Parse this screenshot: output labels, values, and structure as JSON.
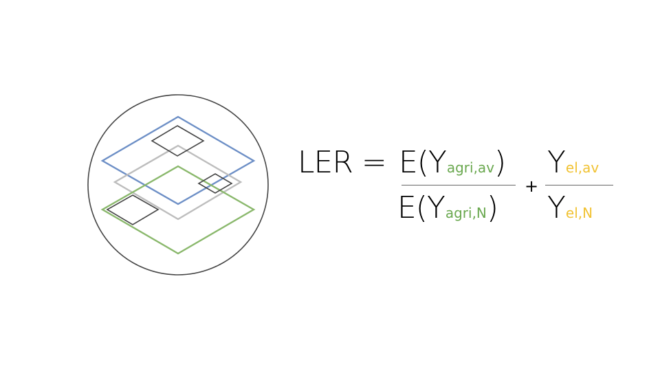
{
  "formula": {
    "lhs": "LER =",
    "term1_num": {
      "base": "E(Y",
      "subscript": "agri,av",
      "close": ")"
    },
    "term1_den": {
      "base": "E(Y",
      "subscript": "agri,N",
      "close": ")"
    },
    "plus": "+",
    "term2_num": {
      "base": "Y",
      "subscript": "el,av"
    },
    "term2_den": {
      "base": "Y",
      "subscript": "el,N"
    }
  },
  "colors": {
    "agri": "#6aa84f",
    "el": "#f1c232",
    "blue_layer": "#6d8fc6",
    "gray_layer": "#bdbdbd",
    "green_layer": "#8ab86c",
    "outline": "#444444"
  }
}
